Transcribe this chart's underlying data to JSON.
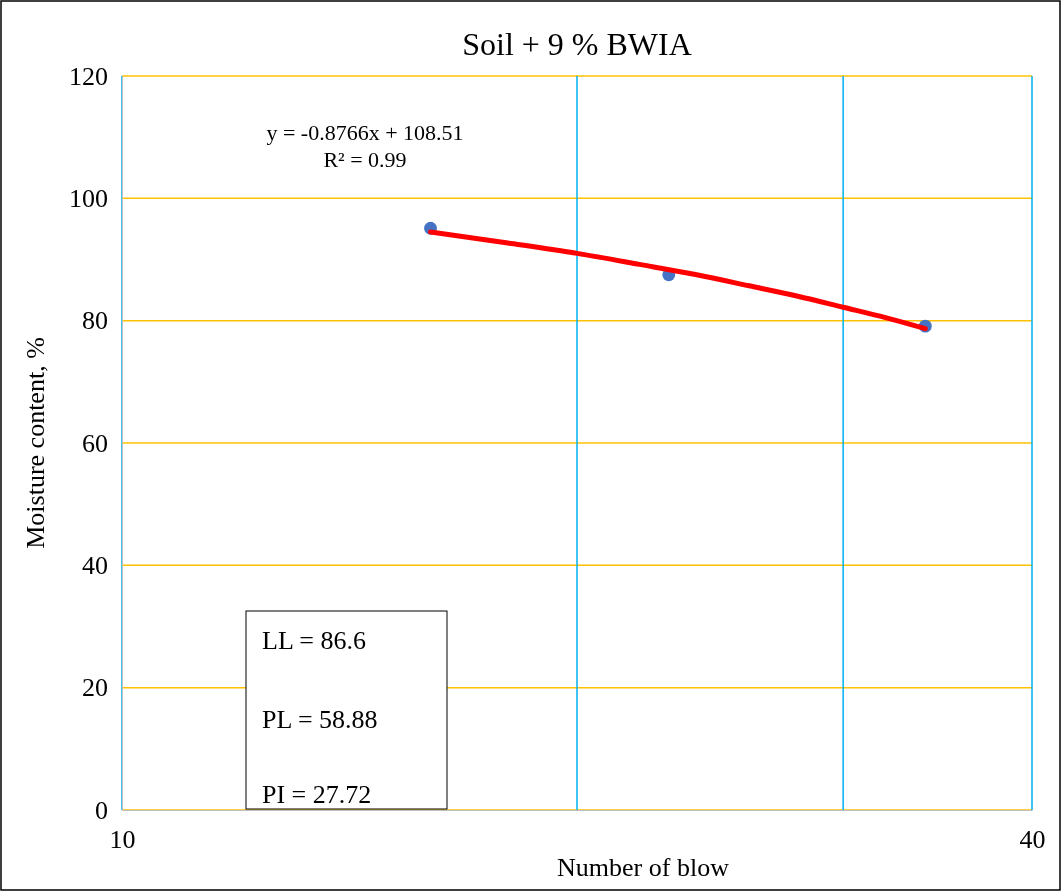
{
  "chart_data": {
    "type": "scatter",
    "title": "Soil + 9 % BWIA",
    "xlabel": "Number of blow",
    "ylabel": "Moisture content, %",
    "log": "x",
    "xlim": [
      10,
      40
    ],
    "xticks": [
      10,
      {
        "value": 20,
        "label": null
      },
      {
        "value": 30,
        "label": null
      },
      40
    ],
    "ylim": [
      0,
      120
    ],
    "yticks": [
      0,
      20,
      40,
      60,
      80,
      100,
      120
    ],
    "grid": true,
    "marker": "circle",
    "series": [
      {
        "color": "#4472c4",
        "x": [
          16,
          23,
          34
        ],
        "values": [
          95.1,
          87.5,
          79.1
        ]
      },
      {
        "type": "line",
        "color": "#ff0000",
        "line_style": "solid",
        "marker": "none",
        "x": [
          16,
          18,
          20,
          22,
          24,
          26,
          28,
          30,
          32,
          34
        ],
        "values": [
          94.5,
          92.7,
          91.0,
          89.2,
          87.5,
          85.7,
          84.0,
          82.2,
          80.5,
          78.7
        ]
      }
    ],
    "annotations": [
      "y = -0.8766x + 108.51",
      "R² = 0.99",
      "LL = 86.6",
      "PL = 58.88",
      "PI = 27.72"
    ]
  }
}
